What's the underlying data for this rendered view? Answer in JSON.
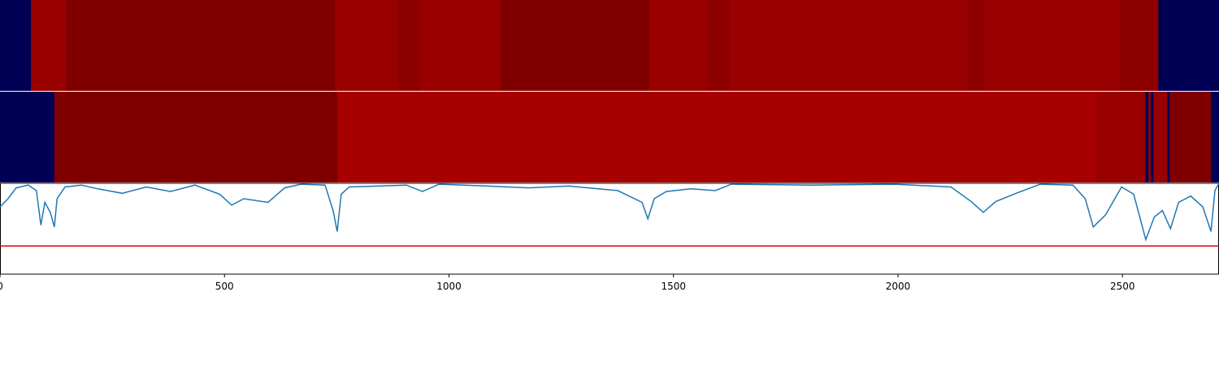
{
  "chart_data": {
    "type": "line",
    "xlim": [
      0,
      2715
    ],
    "xticks": [
      0,
      500,
      1000,
      1500,
      2000,
      2500
    ],
    "ylim": [
      0,
      1
    ],
    "tracks": [
      {
        "segments": [
          {
            "start": 0,
            "end": 69,
            "color": "#000055"
          },
          {
            "start": 69,
            "end": 147,
            "color": "#990000"
          },
          {
            "start": 147,
            "end": 746,
            "color": "#800000"
          },
          {
            "start": 746,
            "end": 885,
            "color": "#990000"
          },
          {
            "start": 885,
            "end": 936,
            "color": "#8c0000"
          },
          {
            "start": 936,
            "end": 1115,
            "color": "#990000"
          },
          {
            "start": 1115,
            "end": 1446,
            "color": "#800000"
          },
          {
            "start": 1446,
            "end": 1575,
            "color": "#990000"
          },
          {
            "start": 1575,
            "end": 1624,
            "color": "#8c0000"
          },
          {
            "start": 1624,
            "end": 2158,
            "color": "#990000"
          },
          {
            "start": 2158,
            "end": 2192,
            "color": "#8c0000"
          },
          {
            "start": 2192,
            "end": 2495,
            "color": "#990000"
          },
          {
            "start": 2495,
            "end": 2580,
            "color": "#8c0000"
          },
          {
            "start": 2580,
            "end": 2715,
            "color": "#000055"
          }
        ]
      },
      {
        "segments": [
          {
            "start": 0,
            "end": 121,
            "color": "#000055"
          },
          {
            "start": 121,
            "end": 751,
            "color": "#800000"
          },
          {
            "start": 751,
            "end": 2442,
            "color": "#a60000"
          },
          {
            "start": 2442,
            "end": 2551,
            "color": "#990000"
          },
          {
            "start": 2551,
            "end": 2558,
            "color": "#000055"
          },
          {
            "start": 2558,
            "end": 2563,
            "color": "#990000"
          },
          {
            "start": 2563,
            "end": 2569,
            "color": "#000055"
          },
          {
            "start": 2569,
            "end": 2600,
            "color": "#990000"
          },
          {
            "start": 2600,
            "end": 2605,
            "color": "#000055"
          },
          {
            "start": 2605,
            "end": 2697,
            "color": "#800000"
          },
          {
            "start": 2697,
            "end": 2715,
            "color": "#000055"
          }
        ]
      }
    ],
    "x": [
      0,
      18,
      36,
      63,
      81,
      91,
      100,
      112,
      121,
      127,
      145,
      181,
      217,
      272,
      326,
      380,
      434,
      489,
      516,
      543,
      597,
      634,
      670,
      724,
      742,
      751,
      760,
      778,
      905,
      941,
      978,
      1086,
      1177,
      1267,
      1376,
      1430,
      1443,
      1457,
      1484,
      1539,
      1593,
      1629,
      1810,
      1991,
      2118,
      2163,
      2190,
      2218,
      2263,
      2317,
      2390,
      2417,
      2435,
      2462,
      2498,
      2525,
      2552,
      2571,
      2589,
      2607,
      2625,
      2652,
      2679,
      2697,
      2706,
      2715
    ],
    "series": [
      {
        "color": "#1f77b4",
        "values": [
          0.74,
          0.83,
          0.95,
          0.98,
          0.92,
          0.54,
          0.79,
          0.68,
          0.52,
          0.83,
          0.96,
          0.98,
          0.94,
          0.89,
          0.96,
          0.91,
          0.98,
          0.88,
          0.76,
          0.83,
          0.79,
          0.95,
          0.99,
          0.98,
          0.7,
          0.47,
          0.88,
          0.96,
          0.98,
          0.91,
          0.99,
          0.97,
          0.95,
          0.97,
          0.92,
          0.79,
          0.61,
          0.83,
          0.91,
          0.94,
          0.92,
          0.99,
          0.98,
          0.99,
          0.96,
          0.8,
          0.68,
          0.8,
          0.89,
          0.99,
          0.98,
          0.83,
          0.52,
          0.65,
          0.96,
          0.88,
          0.38,
          0.63,
          0.7,
          0.5,
          0.79,
          0.86,
          0.74,
          0.47,
          0.92,
          1.0
        ]
      }
    ],
    "threshold": 0.31,
    "threshold_color": "#e00000"
  }
}
